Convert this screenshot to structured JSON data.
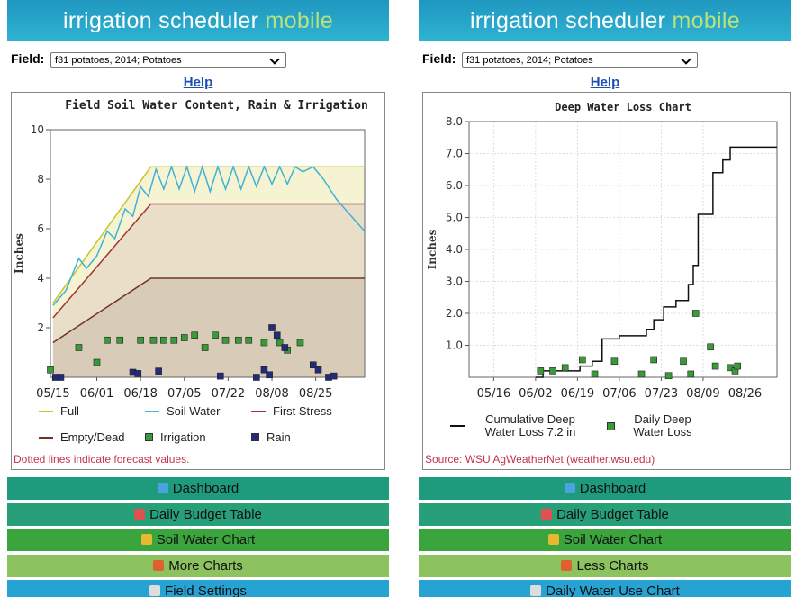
{
  "panels": [
    {
      "header_main": "irrigation scheduler",
      "header_accent": "mobile",
      "field_label": "Field:",
      "field_value": "f31 potatoes, 2014; Potatoes",
      "help": "Help",
      "chart": {
        "type": "line",
        "title": "Field Soil Water Content, Rain & Irrigation",
        "y_label": "Inches",
        "xlim": [
          "05/14",
          "09/13"
        ],
        "xticks": [
          "05/15",
          "06/01",
          "06/18",
          "07/05",
          "07/22",
          "08/08",
          "08/25"
        ],
        "ylim": [
          0,
          10
        ],
        "yticks": [
          2,
          4,
          6,
          8,
          10
        ],
        "grid": false,
        "series": [
          {
            "name": "Full",
            "color": "#c8c62e",
            "kind": "line",
            "x": [
              "05/15",
              "06/22",
              "09/13"
            ],
            "values": [
              3.0,
              8.5,
              8.5
            ]
          },
          {
            "name": "Soil Water",
            "color": "#3fb2d6",
            "kind": "line",
            "x": [
              "05/15",
              "05/20",
              "05/25",
              "05/28",
              "06/01",
              "06/05",
              "06/08",
              "06/12",
              "06/15",
              "06/18",
              "06/21",
              "06/24",
              "06/27",
              "06/30",
              "07/03",
              "07/06",
              "07/09",
              "07/12",
              "07/15",
              "07/18",
              "07/21",
              "07/24",
              "07/27",
              "07/30",
              "08/02",
              "08/05",
              "08/08",
              "08/11",
              "08/14",
              "08/17",
              "08/20",
              "08/24",
              "08/28",
              "09/02",
              "09/07",
              "09/13"
            ],
            "values": [
              2.9,
              3.5,
              4.8,
              4.4,
              4.9,
              5.9,
              5.6,
              6.8,
              6.5,
              7.7,
              7.3,
              8.4,
              7.6,
              8.5,
              7.6,
              8.5,
              7.5,
              8.5,
              7.5,
              8.5,
              7.6,
              8.5,
              7.6,
              8.5,
              7.7,
              8.5,
              7.8,
              8.5,
              7.8,
              8.5,
              8.3,
              8.5,
              8.0,
              7.2,
              6.6,
              5.9
            ]
          },
          {
            "name": "First Stress",
            "color": "#a4343a",
            "kind": "line",
            "x": [
              "05/15",
              "06/22",
              "09/13"
            ],
            "values": [
              2.4,
              7.0,
              7.0
            ]
          },
          {
            "name": "Empty/Dead",
            "color": "#6e3526",
            "kind": "line",
            "x": [
              "05/15",
              "06/22",
              "09/13"
            ],
            "values": [
              1.4,
              4.0,
              4.0
            ]
          },
          {
            "name": "Irrigation",
            "color": "#3a9a3a",
            "kind": "points",
            "x": [
              "05/14",
              "05/25",
              "06/01",
              "06/05",
              "06/10",
              "06/18",
              "06/23",
              "06/27",
              "07/01",
              "07/05",
              "07/09",
              "07/13",
              "07/17",
              "07/21",
              "07/26",
              "07/30",
              "08/05",
              "08/11",
              "08/14",
              "08/19"
            ],
            "values": [
              0.3,
              1.2,
              0.6,
              1.5,
              1.5,
              1.5,
              1.5,
              1.5,
              1.5,
              1.6,
              1.7,
              1.2,
              1.7,
              1.5,
              1.5,
              1.5,
              1.4,
              1.4,
              1.1,
              1.4
            ]
          },
          {
            "name": "Rain",
            "color": "#232a7a",
            "kind": "points",
            "x": [
              "05/16",
              "05/18",
              "06/15",
              "06/17",
              "06/25",
              "07/19",
              "08/02",
              "08/05",
              "08/07",
              "08/08",
              "08/10",
              "08/13",
              "08/24",
              "08/26",
              "08/30",
              "09/01"
            ],
            "values": [
              0.0,
              0.0,
              0.2,
              0.15,
              0.25,
              0.05,
              0.0,
              0.3,
              0.1,
              2.0,
              1.7,
              1.2,
              0.5,
              0.3,
              0.0,
              0.05
            ]
          }
        ]
      },
      "note": "Dotted lines indicate forecast values.",
      "menu": [
        "Dashboard",
        "Daily Budget Table",
        "Soil Water Chart",
        "More Charts",
        "Field Settings"
      ]
    },
    {
      "header_main": "irrigation scheduler",
      "header_accent": "mobile",
      "field_label": "Field:",
      "field_value": "f31 potatoes, 2014; Potatoes",
      "help": "Help",
      "chart": {
        "type": "line",
        "title": "Deep Water Loss Chart",
        "y_label": "Inches",
        "xlim": [
          "05/06",
          "09/08"
        ],
        "xticks": [
          "05/16",
          "06/02",
          "06/19",
          "07/06",
          "07/23",
          "08/09",
          "08/26"
        ],
        "ylim": [
          0,
          8
        ],
        "yticks": [
          {
            "value": 1,
            "label": "1.0"
          },
          {
            "value": 2,
            "label": "2.0"
          },
          {
            "value": 3,
            "label": "3.0"
          },
          {
            "value": 4,
            "label": "4.0"
          },
          {
            "value": 5,
            "label": "5.0"
          },
          {
            "value": 6,
            "label": "6.0"
          },
          {
            "value": 7,
            "label": "7.0"
          },
          {
            "value": 8,
            "label": "8.0"
          }
        ],
        "grid": true,
        "series": [
          {
            "name": "Cumulative Deep Water Loss 7.2 in",
            "color": "#111111",
            "kind": "step",
            "x": [
              "06/02",
              "06/05",
              "06/20",
              "06/25",
              "06/29",
              "07/06",
              "07/17",
              "07/20",
              "07/24",
              "07/29",
              "08/03",
              "08/05",
              "08/07",
              "08/13",
              "08/17",
              "08/20",
              "09/08"
            ],
            "values": [
              0.0,
              0.2,
              0.35,
              0.5,
              1.2,
              1.3,
              1.5,
              1.8,
              2.2,
              2.4,
              2.9,
              3.5,
              5.1,
              6.4,
              6.8,
              7.2,
              7.2
            ]
          },
          {
            "name": "Daily Deep Water Loss",
            "color": "#3a9a3a",
            "kind": "points",
            "x": [
              "06/04",
              "06/09",
              "06/14",
              "06/21",
              "06/26",
              "07/04",
              "07/15",
              "07/20",
              "07/26",
              "08/01",
              "08/04",
              "08/06",
              "08/12",
              "08/14",
              "08/20",
              "08/22",
              "08/23"
            ],
            "values": [
              0.2,
              0.2,
              0.3,
              0.55,
              0.1,
              0.5,
              0.1,
              0.55,
              0.05,
              0.5,
              0.1,
              2.0,
              0.95,
              0.35,
              0.3,
              0.2,
              0.35
            ]
          }
        ]
      },
      "note": "Source: WSU AgWeatherNet (weather.wsu.edu)",
      "menu": [
        "Dashboard",
        "Daily Budget Table",
        "Soil Water Chart",
        "Less Charts",
        "Daily Water Use Chart"
      ]
    }
  ]
}
